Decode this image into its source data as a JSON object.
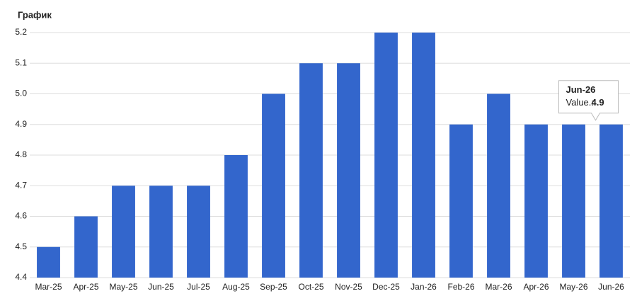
{
  "chart_data": {
    "type": "bar",
    "title": "График",
    "categories": [
      "Mar-25",
      "Apr-25",
      "May-25",
      "Jun-25",
      "Jul-25",
      "Aug-25",
      "Sep-25",
      "Oct-25",
      "Nov-25",
      "Dec-25",
      "Jan-26",
      "Feb-26",
      "Mar-26",
      "Apr-26",
      "May-26",
      "Jun-26"
    ],
    "values": [
      4.5,
      4.6,
      4.7,
      4.7,
      4.7,
      4.8,
      5.0,
      5.1,
      5.1,
      5.2,
      5.2,
      4.9,
      5.0,
      4.9,
      4.9,
      4.9
    ],
    "color": "#3366cc",
    "ylim": [
      4.4,
      5.2
    ],
    "yticks": [
      4.4,
      4.5,
      4.6,
      4.7,
      4.8,
      4.9,
      {
        "value": 5,
        "label": "5.0"
      },
      5.1,
      5.2
    ],
    "grid": true,
    "tooltip": {
      "category": "Jun-26",
      "label": "Value.:",
      "value": 4.9
    }
  }
}
